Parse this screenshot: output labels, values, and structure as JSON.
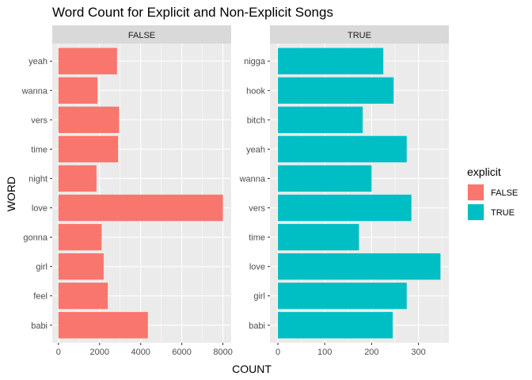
{
  "chart_data": {
    "type": "bar",
    "orientation": "horizontal",
    "title": "Word Count for Explicit and Non-Explicit Songs",
    "xlabel": "COUNT",
    "ylabel": "WORD",
    "grid": true,
    "legend": {
      "title": "explicit",
      "position": "right",
      "entries": [
        {
          "label": "FALSE",
          "color": "#F8766D"
        },
        {
          "label": "TRUE",
          "color": "#00BFC4"
        }
      ]
    },
    "panels": [
      {
        "strip": "FALSE",
        "color": "#F8766D",
        "xlim": [
          -300,
          8400
        ],
        "xticks": [
          0,
          2000,
          4000,
          6000,
          8000
        ],
        "categories": [
          "yeah",
          "wanna",
          "vers",
          "time",
          "night",
          "love",
          "gonna",
          "girl",
          "feel",
          "babi"
        ],
        "values": [
          2850,
          1900,
          2950,
          2900,
          1850,
          8000,
          2100,
          2200,
          2400,
          4350
        ]
      },
      {
        "strip": "TRUE",
        "color": "#00BFC4",
        "xlim": [
          -17,
          365
        ],
        "xticks": [
          0,
          100,
          200,
          300
        ],
        "categories": [
          "nigga",
          "hook",
          "bitch",
          "yeah",
          "wanna",
          "vers",
          "time",
          "love",
          "girl",
          "babi"
        ],
        "values": [
          225,
          247,
          181,
          275,
          200,
          285,
          173,
          347,
          275,
          245
        ]
      }
    ]
  }
}
